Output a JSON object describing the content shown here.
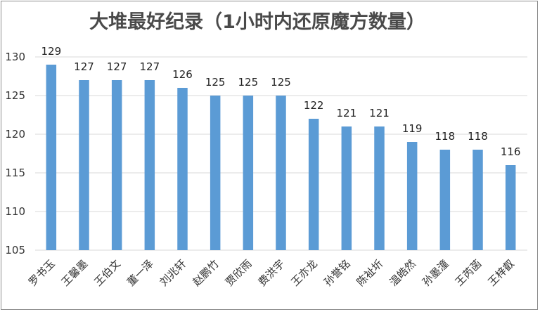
{
  "chart_data": {
    "type": "bar",
    "title": "大堆最好纪录（1小时内还原魔方数量）",
    "xlabel": "",
    "ylabel": "",
    "categories": [
      "罗书玉",
      "王馨墨",
      "王伯文",
      "董一泽",
      "刘兆轩",
      "赵鹏竹",
      "贾欣雨",
      "费洪宇",
      "王亦龙",
      "孙誉铭",
      "陈祉圻",
      "温皓然",
      "孙墨潼",
      "王芮菡",
      "王梓叡"
    ],
    "values": [
      129,
      127,
      127,
      127,
      126,
      125,
      125,
      125,
      122,
      121,
      121,
      119,
      118,
      118,
      116
    ],
    "ylim": [
      105,
      130
    ],
    "yticks": [
      105,
      110,
      115,
      120,
      125,
      130
    ],
    "bar_color": "#5b9bd5",
    "grid": true,
    "legend": "none"
  }
}
